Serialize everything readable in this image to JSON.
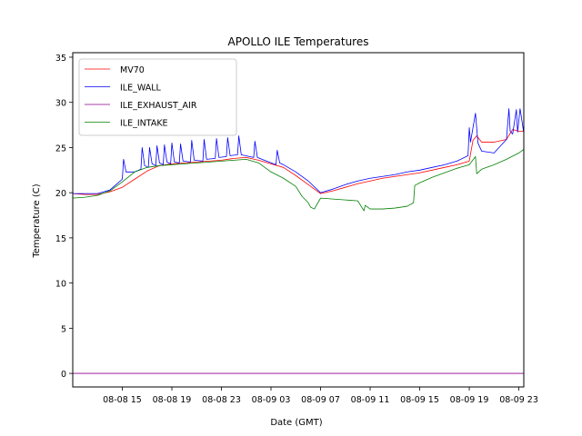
{
  "chart_data": {
    "type": "line",
    "title": "APOLLO ILE Temperatures",
    "xlabel": "Date (GMT)",
    "ylabel": "Temperature (C)",
    "x_unit": "hours since 08-08 11:00 GMT",
    "xlim": [
      0,
      36.4
    ],
    "ylim": [
      -1.5,
      35.5
    ],
    "xticks": [
      {
        "value": 4,
        "label": "08-08 15"
      },
      {
        "value": 8,
        "label": "08-08 19"
      },
      {
        "value": 12,
        "label": "08-08 23"
      },
      {
        "value": 16,
        "label": "08-09 03"
      },
      {
        "value": 20,
        "label": "08-09 07"
      },
      {
        "value": 24,
        "label": "08-09 11"
      },
      {
        "value": 28,
        "label": "08-09 15"
      },
      {
        "value": 32,
        "label": "08-09 19"
      },
      {
        "value": 36,
        "label": "08-09 23"
      }
    ],
    "yticks": [
      0,
      5,
      10,
      15,
      20,
      25,
      30,
      35
    ],
    "legend_position": "top-left",
    "series": [
      {
        "name": "MV70",
        "color": "#ff0000",
        "x": [
          0,
          1,
          2,
          3,
          4,
          5,
          6,
          7,
          8,
          9,
          10,
          11,
          12,
          13,
          14,
          15,
          16,
          17,
          18,
          19,
          20,
          21,
          22,
          23,
          24,
          25,
          26,
          27,
          28,
          29,
          30,
          31,
          32,
          32.3,
          32.6,
          33,
          34,
          35,
          35.5,
          36,
          36.4
        ],
        "y": [
          19.9,
          19.8,
          19.8,
          20.1,
          20.6,
          21.5,
          22.4,
          23.0,
          23.2,
          23.3,
          23.4,
          23.5,
          23.6,
          23.8,
          23.9,
          23.6,
          23.2,
          22.8,
          21.9,
          20.9,
          19.9,
          20.2,
          20.6,
          21.0,
          21.3,
          21.6,
          21.8,
          22.0,
          22.2,
          22.5,
          22.8,
          23.1,
          23.5,
          25.8,
          26.3,
          25.6,
          25.6,
          25.9,
          27.0,
          26.8,
          26.8
        ]
      },
      {
        "name": "ILE_WALL",
        "color": "#0000ff",
        "x": [
          0,
          1,
          2,
          3,
          4,
          4.1,
          4.3,
          5,
          5.5,
          5.6,
          5.8,
          6.1,
          6.2,
          6.4,
          6.7,
          6.8,
          7.0,
          7.3,
          7.4,
          7.6,
          7.9,
          8.0,
          8.2,
          8.6,
          8.7,
          8.9,
          9.5,
          9.6,
          9.8,
          10.5,
          10.6,
          10.8,
          11.5,
          11.6,
          11.8,
          12.4,
          12.5,
          12.7,
          13.3,
          13.4,
          13.6,
          14.6,
          14.7,
          14.9,
          16.4,
          16.5,
          16.7,
          17,
          18,
          19,
          20,
          21,
          22,
          23,
          24,
          25,
          26,
          27,
          28,
          29,
          30,
          31,
          31.9,
          32.0,
          32.1,
          32.5,
          32.7,
          33,
          34,
          35,
          35.2,
          35.3,
          35.5,
          35.8,
          35.9,
          36.1,
          36.4
        ],
        "y": [
          19.9,
          19.9,
          19.9,
          20.3,
          21.5,
          23.7,
          22.3,
          22.3,
          22.6,
          25.0,
          23.0,
          22.8,
          25.0,
          23.2,
          23.0,
          25.2,
          23.3,
          23.1,
          25.3,
          23.4,
          23.2,
          25.5,
          23.4,
          23.3,
          25.4,
          23.5,
          23.4,
          25.8,
          23.6,
          23.5,
          25.9,
          23.7,
          23.8,
          26.0,
          23.9,
          24.0,
          26.1,
          24.1,
          24.2,
          26.3,
          24.2,
          23.9,
          25.7,
          23.9,
          23.1,
          24.7,
          23.3,
          23.1,
          22.3,
          21.3,
          20.0,
          20.4,
          20.9,
          21.3,
          21.6,
          21.8,
          22.0,
          22.3,
          22.5,
          22.8,
          23.1,
          23.5,
          24.1,
          27.2,
          25.6,
          28.8,
          25.5,
          24.6,
          24.4,
          25.9,
          29.3,
          26.8,
          26.5,
          29.2,
          26.7,
          29.3,
          26.6
        ]
      },
      {
        "name": "ILE_EXHAUST_AIR",
        "color": "#8c008c",
        "x": [
          0,
          36.4
        ],
        "y": [
          0.0,
          0.0
        ]
      },
      {
        "name": "ILE_INTAKE",
        "color": "#008000",
        "x": [
          0,
          1,
          2,
          3,
          4,
          5,
          6,
          7,
          8,
          9,
          10,
          11,
          12,
          13,
          14,
          15,
          16,
          17,
          18,
          18.5,
          19,
          19.2,
          19.5,
          20,
          21,
          22,
          23,
          23.5,
          23.6,
          24,
          25,
          26,
          27,
          27.5,
          27.6,
          28,
          29,
          30,
          31,
          32,
          32.5,
          32.6,
          33,
          34,
          35,
          36,
          36.4
        ],
        "y": [
          19.4,
          19.5,
          19.7,
          20.2,
          21.2,
          22.3,
          22.8,
          23.0,
          23.1,
          23.2,
          23.3,
          23.4,
          23.5,
          23.6,
          23.7,
          23.3,
          22.3,
          21.6,
          20.7,
          19.6,
          18.9,
          18.4,
          18.2,
          19.4,
          19.3,
          19.2,
          19.1,
          18.0,
          18.6,
          18.2,
          18.2,
          18.3,
          18.5,
          18.9,
          20.8,
          21.1,
          21.7,
          22.2,
          22.7,
          23.1,
          24.0,
          22.1,
          22.6,
          23.1,
          23.7,
          24.4,
          24.8
        ]
      }
    ]
  }
}
